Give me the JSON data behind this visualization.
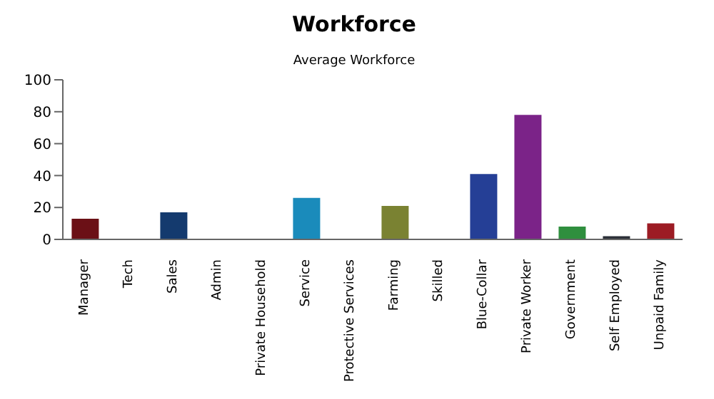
{
  "chart_data": {
    "type": "bar",
    "title": "Workforce",
    "subtitle": "Average Workforce",
    "categories": [
      "Manager",
      "Tech",
      "Sales",
      "Admin",
      "Private Household",
      "Service",
      "Protective Services",
      "Farming",
      "Skilled",
      "Blue-Collar",
      "Private Worker",
      "Government",
      "Self Employed",
      "Unpaid Family"
    ],
    "values": [
      13,
      0,
      17,
      0,
      0,
      26,
      0,
      21,
      0,
      41,
      78,
      8,
      2,
      10
    ],
    "colors": [
      "#6b1016",
      "#888888",
      "#143a6e",
      "#888888",
      "#888888",
      "#1a8bbb",
      "#888888",
      "#7a8232",
      "#888888",
      "#253f96",
      "#7b2388",
      "#2f8f3e",
      "#2c3038",
      "#9c1c24"
    ],
    "ylim": [
      0,
      100
    ],
    "yticks": [
      0,
      20,
      40,
      60,
      80,
      100
    ]
  }
}
